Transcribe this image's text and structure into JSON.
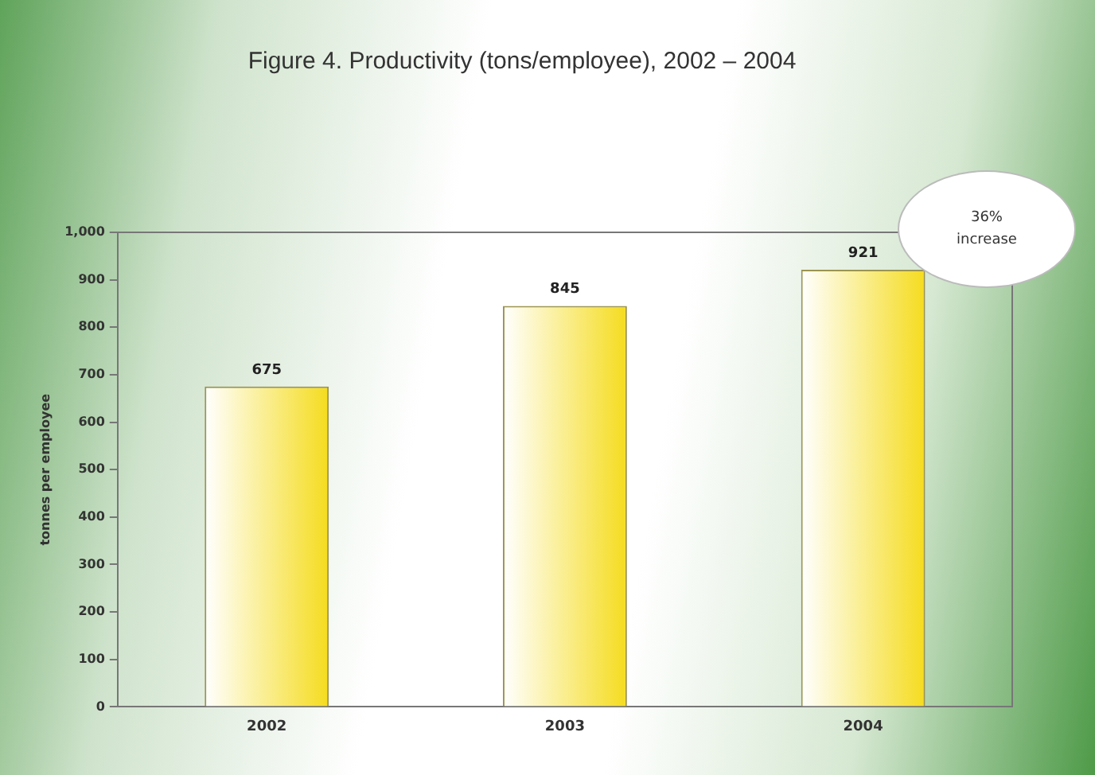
{
  "chart_data": {
    "type": "bar",
    "title": "Figure 4. Productivity (tons/employee), 2002 – 2004",
    "ylabel": "tonnes per employee",
    "categories": [
      "2002",
      "2003",
      "2004"
    ],
    "values": [
      675,
      845,
      921
    ],
    "color": "#f5dc1e",
    "ylim": [
      0,
      1000
    ],
    "yticks": [
      0,
      100,
      200,
      300,
      400,
      500,
      600,
      700,
      800,
      900,
      {
        "value": 1000,
        "label": "1,000"
      }
    ],
    "grid": false,
    "legend": false,
    "data_labels": true,
    "annotations": [
      "36%\nincrease"
    ]
  }
}
